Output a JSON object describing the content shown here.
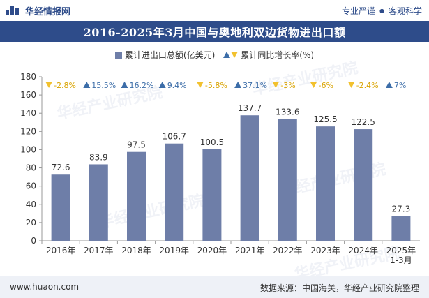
{
  "header": {
    "brand": "华经情报网",
    "tagline_left": "专业严谨",
    "tagline_sep": "●",
    "tagline_right": "客观科学"
  },
  "colors": {
    "bar": "#6e7ea8",
    "up": "#3c6da8",
    "down": "#f2c12e",
    "header_bg": "#2e4c8a"
  },
  "legend": {
    "bar_label": "累计进出口总额(亿美元)",
    "rate_label": "累计同比增长率(%)"
  },
  "watermark": "华经产业研究院",
  "chart_data": {
    "type": "bar",
    "title": "2016-2025年3月中国与奥地利双边货物进出口额",
    "categories": [
      "2016年",
      "2017年",
      "2018年",
      "2019年",
      "2020年",
      "2021年",
      "2022年",
      "2023年",
      "2024年",
      "2025年\n1-3月"
    ],
    "values": [
      72.6,
      83.9,
      97.5,
      106.7,
      100.5,
      137.7,
      133.6,
      125.5,
      122.5,
      27.3
    ],
    "value_labels": [
      "72.6",
      "83.9",
      "97.5",
      "106.7",
      "100.5",
      "137.7",
      "133.6",
      "125.5",
      "122.5",
      "27.3"
    ],
    "growth": [
      -2.8,
      15.5,
      16.2,
      9.4,
      -5.8,
      37.1,
      -3,
      -6,
      -2.4,
      7
    ],
    "growth_labels": [
      "-2.8%",
      "15.5%",
      "16.2%",
      "9.4%",
      "-5.8%",
      "37.1%",
      "-3%",
      "-6%",
      "-2.4%",
      "7%"
    ],
    "ylim": [
      0,
      180
    ],
    "yticks": [
      "0",
      "20",
      "40",
      "60",
      "80",
      "100",
      "120",
      "140",
      "160",
      "180"
    ],
    "grid": false,
    "legend_position": "top"
  },
  "footer": {
    "url": "www.huaon.com",
    "source": "数据来源：中国海关，华经产业研究院整理"
  }
}
